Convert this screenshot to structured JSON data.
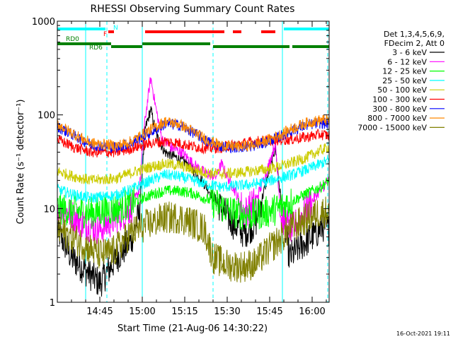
{
  "chart_data": {
    "type": "line",
    "title": "RHESSI Observing Summary Count Rates",
    "xlabel": "Start Time (21-Aug-06 14:30:22)",
    "ylabel": "Count Rate (s⁻¹ detector⁻¹)",
    "timestamp": "16-Oct-2021 19:11",
    "y_scale": "log",
    "ylim": [
      1,
      1000
    ],
    "y_ticks": [
      1,
      10,
      100,
      1000
    ],
    "y_tick_labels": [
      "1",
      "10",
      "100",
      "1000"
    ],
    "x_range_min": [
      0,
      96
    ],
    "x_ticks_min": [
      15,
      30,
      45,
      60,
      75,
      90
    ],
    "x_tick_labels": [
      "14:45",
      "15:00",
      "15:15",
      "15:30",
      "15:45",
      "16:00"
    ],
    "legend_header": [
      "Det 1,3,4,5,6,9,",
      "FDecim 2, Att 0"
    ],
    "legend_position": "right",
    "series": [
      {
        "name": "3 - 6 keV",
        "color": "#000000",
        "key": [
          [
            0,
            6
          ],
          [
            5,
            3
          ],
          [
            15,
            1.6
          ],
          [
            21,
            3
          ],
          [
            26,
            4.5
          ],
          [
            29,
            9
          ],
          [
            31,
            70
          ],
          [
            33,
            115
          ],
          [
            35,
            60
          ],
          [
            38,
            40
          ],
          [
            42,
            35
          ],
          [
            46,
            30
          ],
          [
            50,
            22
          ],
          [
            54,
            15
          ],
          [
            58,
            10
          ],
          [
            62,
            7
          ],
          [
            66,
            5.5
          ],
          [
            70,
            7
          ],
          [
            74,
            20
          ],
          [
            77,
            45
          ],
          [
            79,
            12
          ],
          [
            82,
            3
          ],
          [
            86,
            4
          ],
          [
            90,
            5
          ],
          [
            94,
            6.5
          ],
          [
            96,
            6
          ]
        ]
      },
      {
        "name": "6 - 12 keV",
        "color": "#ff00ff",
        "key": [
          [
            0,
            11
          ],
          [
            4,
            9
          ],
          [
            9,
            7
          ],
          [
            15,
            6
          ],
          [
            21,
            8
          ],
          [
            26,
            10
          ],
          [
            29,
            16
          ],
          [
            31,
            90
          ],
          [
            33,
            250
          ],
          [
            35,
            110
          ],
          [
            37,
            55
          ],
          [
            40,
            45
          ],
          [
            44,
            40
          ],
          [
            48,
            30
          ],
          [
            52,
            24
          ],
          [
            56,
            22
          ],
          [
            58,
            30
          ],
          [
            60,
            22
          ],
          [
            63,
            15
          ],
          [
            66,
            9
          ],
          [
            70,
            12
          ],
          [
            74,
            25
          ],
          [
            77,
            50
          ],
          [
            79,
            8
          ],
          [
            83,
            6
          ],
          [
            88,
            10
          ],
          [
            93,
            16
          ],
          [
            96,
            20
          ]
        ]
      },
      {
        "name": "12 - 25 keV",
        "color": "#00ff00",
        "key": [
          [
            0,
            10
          ],
          [
            6,
            9.5
          ],
          [
            12,
            9
          ],
          [
            21,
            10
          ],
          [
            26,
            11.5
          ],
          [
            33,
            14
          ],
          [
            38,
            15.5
          ],
          [
            43,
            15.5
          ],
          [
            48,
            14.5
          ],
          [
            53,
            12.5
          ],
          [
            58,
            10.5
          ],
          [
            63,
            9
          ],
          [
            68,
            8.5
          ],
          [
            73,
            9
          ],
          [
            78,
            10
          ],
          [
            83,
            12
          ],
          [
            88,
            14.5
          ],
          [
            93,
            17
          ],
          [
            96,
            20
          ]
        ]
      },
      {
        "name": "25 - 50 keV",
        "color": "#00ffff",
        "key": [
          [
            0,
            16
          ],
          [
            6,
            14
          ],
          [
            12,
            13
          ],
          [
            21,
            14
          ],
          [
            26,
            16
          ],
          [
            33,
            20
          ],
          [
            38,
            23
          ],
          [
            43,
            22
          ],
          [
            48,
            20
          ],
          [
            53,
            18
          ],
          [
            58,
            17
          ],
          [
            63,
            17.5
          ],
          [
            68,
            18
          ],
          [
            73,
            19
          ],
          [
            78,
            21
          ],
          [
            83,
            23
          ],
          [
            88,
            26
          ],
          [
            93,
            30
          ],
          [
            96,
            33
          ]
        ]
      },
      {
        "name": "50 - 100 keV",
        "color": "#cccc00",
        "key": [
          [
            0,
            25
          ],
          [
            6,
            22
          ],
          [
            12,
            20
          ],
          [
            21,
            21
          ],
          [
            26,
            24
          ],
          [
            33,
            28
          ],
          [
            38,
            30
          ],
          [
            43,
            29
          ],
          [
            48,
            26
          ],
          [
            53,
            24
          ],
          [
            58,
            23.5
          ],
          [
            63,
            24
          ],
          [
            68,
            25
          ],
          [
            73,
            26
          ],
          [
            78,
            28
          ],
          [
            83,
            31
          ],
          [
            88,
            35
          ],
          [
            93,
            42
          ],
          [
            96,
            45
          ]
        ]
      },
      {
        "name": "100 - 300 keV",
        "color": "#ff0000",
        "key": [
          [
            0,
            55
          ],
          [
            6,
            45
          ],
          [
            12,
            40
          ],
          [
            21,
            40
          ],
          [
            26,
            44
          ],
          [
            33,
            50
          ],
          [
            38,
            52
          ],
          [
            43,
            50
          ],
          [
            48,
            46
          ],
          [
            53,
            44
          ],
          [
            58,
            45
          ],
          [
            63,
            48
          ],
          [
            68,
            51
          ],
          [
            73,
            53
          ],
          [
            78,
            54
          ],
          [
            83,
            55
          ],
          [
            88,
            58
          ],
          [
            93,
            62
          ],
          [
            96,
            60
          ]
        ]
      },
      {
        "name": "300 - 800 keV",
        "color": "#0000ff",
        "key": [
          [
            0,
            75
          ],
          [
            6,
            60
          ],
          [
            12,
            48
          ],
          [
            21,
            45
          ],
          [
            26,
            50
          ],
          [
            33,
            65
          ],
          [
            38,
            80
          ],
          [
            43,
            78
          ],
          [
            48,
            65
          ],
          [
            53,
            52
          ],
          [
            58,
            46
          ],
          [
            63,
            45
          ],
          [
            68,
            46
          ],
          [
            73,
            50
          ],
          [
            78,
            58
          ],
          [
            83,
            68
          ],
          [
            88,
            78
          ],
          [
            93,
            82
          ],
          [
            96,
            80
          ]
        ]
      },
      {
        "name": "800 - 7000 keV",
        "color": "#ff8800",
        "key": [
          [
            0,
            80
          ],
          [
            6,
            62
          ],
          [
            12,
            50
          ],
          [
            21,
            47
          ],
          [
            26,
            52
          ],
          [
            33,
            70
          ],
          [
            38,
            85
          ],
          [
            43,
            80
          ],
          [
            48,
            66
          ],
          [
            53,
            54
          ],
          [
            58,
            47
          ],
          [
            63,
            46
          ],
          [
            68,
            47
          ],
          [
            73,
            52
          ],
          [
            78,
            60
          ],
          [
            83,
            72
          ],
          [
            88,
            82
          ],
          [
            93,
            88
          ],
          [
            96,
            88
          ]
        ]
      },
      {
        "name": "7000 - 15000 keV",
        "color": "#808000",
        "key": [
          [
            0,
            6
          ],
          [
            5,
            5
          ],
          [
            10,
            4
          ],
          [
            15,
            3.2
          ],
          [
            20,
            3.5
          ],
          [
            26,
            5.5
          ],
          [
            33,
            7
          ],
          [
            38,
            8
          ],
          [
            43,
            8
          ],
          [
            48,
            7
          ],
          [
            52,
            6
          ],
          [
            55,
            3
          ],
          [
            60,
            2.5
          ],
          [
            65,
            2.4
          ],
          [
            70,
            2.6
          ],
          [
            74,
            3.5
          ],
          [
            78,
            4.5
          ],
          [
            82,
            6
          ],
          [
            87,
            7.5
          ],
          [
            92,
            9
          ],
          [
            96,
            9.5
          ]
        ]
      }
    ],
    "status_bars": [
      {
        "label": "N",
        "color": "#00ffff",
        "segments": [
          [
            0,
            17
          ],
          [
            80,
            96
          ]
        ]
      },
      {
        "label": "F",
        "color": "#ff0000",
        "segments": [
          [
            18,
            20
          ],
          [
            31,
            59
          ],
          [
            62,
            65
          ],
          [
            72,
            77
          ]
        ]
      },
      {
        "label": "RD0",
        "color": "#008000",
        "segments": [
          [
            0,
            19
          ],
          [
            30,
            54
          ]
        ]
      },
      {
        "label": "RD6",
        "color": "#008000",
        "segments": [
          [
            19,
            30
          ],
          [
            55,
            82
          ],
          [
            83,
            96
          ]
        ]
      }
    ],
    "vertical_markers_min": [
      10,
      17.5,
      30,
      55,
      79.5,
      95.5
    ]
  }
}
